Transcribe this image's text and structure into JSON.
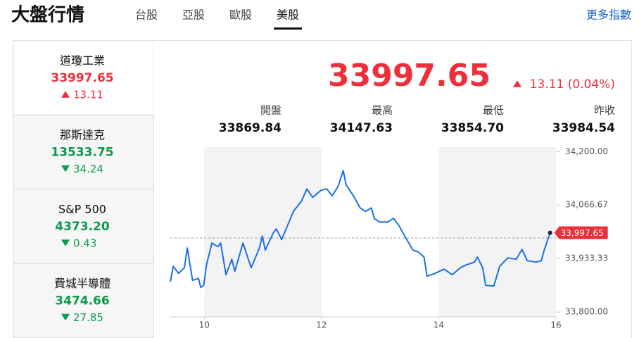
{
  "header": {
    "title": "大盤行情",
    "tabs": [
      "台股",
      "亞股",
      "歐股",
      "美股"
    ],
    "active_tab": 3,
    "more_link": "更多指數"
  },
  "indices": [
    {
      "name": "道瓊工業",
      "price": "33997.65",
      "change": "13.11",
      "trend": "up"
    },
    {
      "name": "那斯達克",
      "price": "13533.75",
      "change": "34.24",
      "trend": "down"
    },
    {
      "name": "S&P 500",
      "price": "4373.20",
      "change": "0.43",
      "trend": "down"
    },
    {
      "name": "費城半導體",
      "price": "3474.66",
      "change": "27.85",
      "trend": "down"
    }
  ],
  "quote": {
    "price": "33997.65",
    "change": "13.11 (0.04%)",
    "trend": "up",
    "stats": [
      {
        "label": "開盤",
        "value": "33869.84"
      },
      {
        "label": "最高",
        "value": "34147.63"
      },
      {
        "label": "最低",
        "value": "33854.70"
      },
      {
        "label": "昨收",
        "value": "33984.54"
      }
    ]
  },
  "chart_data": {
    "type": "line",
    "x": [
      9.42,
      9.47,
      9.56,
      9.66,
      9.71,
      9.8,
      9.9,
      9.94,
      9.99,
      10.04,
      10.13,
      10.23,
      10.28,
      10.37,
      10.47,
      10.52,
      10.66,
      10.8,
      10.94,
      10.99,
      11.04,
      11.18,
      11.23,
      11.32,
      11.42,
      11.52,
      11.66,
      11.75,
      11.85,
      11.99,
      12.09,
      12.18,
      12.28,
      12.37,
      12.42,
      12.56,
      12.66,
      12.75,
      12.85,
      12.9,
      12.99,
      13.13,
      13.23,
      13.32,
      13.42,
      13.56,
      13.66,
      13.75,
      13.8,
      13.94,
      14.09,
      14.23,
      14.37,
      14.47,
      14.61,
      14.66,
      14.75,
      14.8,
      14.94,
      15.04,
      15.18,
      15.32,
      15.42,
      15.51,
      15.66,
      15.75,
      15.8,
      15.9
    ],
    "series": [
      {
        "color": "#1a6fe6",
        "values": [
          33875.4,
          33914,
          33896.5,
          33910.5,
          33959.6,
          33879,
          33884,
          33861.4,
          33866.7,
          33919.3,
          33972,
          33963,
          33972,
          33893,
          33931.6,
          33901.8,
          33972,
          33910.5,
          33959.6,
          33989.5,
          33954.4,
          33998.2,
          34007,
          33980.7,
          34015.8,
          34050.9,
          34077.2,
          34107,
          34086,
          34103.5,
          34107,
          34089.5,
          34112.3,
          34152.6,
          34117.5,
          34086,
          34059.6,
          34050.9,
          34059.6,
          34033.3,
          34024.6,
          34024.6,
          34033.3,
          34015.8,
          33989.5,
          33954.4,
          33949.1,
          33936.8,
          33889.5,
          33896.5,
          33907,
          33893,
          33910.5,
          33917.5,
          33924.6,
          33936.8,
          33910.5,
          33866.7,
          33864.9,
          33914,
          33935.1,
          33931.6,
          33956.1,
          33928.1,
          33924.6,
          33928.1,
          33954.4,
          33997.65
        ]
      }
    ],
    "xlim": [
      9.42,
      16
    ],
    "xticks": [
      10,
      12,
      14,
      16
    ],
    "ylim": [
      33788,
      34211
    ],
    "yticks": [
      {
        "value": 33800,
        "label": "33,800.00"
      },
      {
        "value": 33933.33,
        "label": "33,933.33"
      },
      {
        "value": 34066.67,
        "label": "34,066.67"
      },
      {
        "value": 34200,
        "label": "34,200.00"
      }
    ],
    "ref_line": 33984.54,
    "annotations": [
      {
        "x": 15.9,
        "y": 33997.65,
        "label": "33,997.65"
      }
    ]
  }
}
